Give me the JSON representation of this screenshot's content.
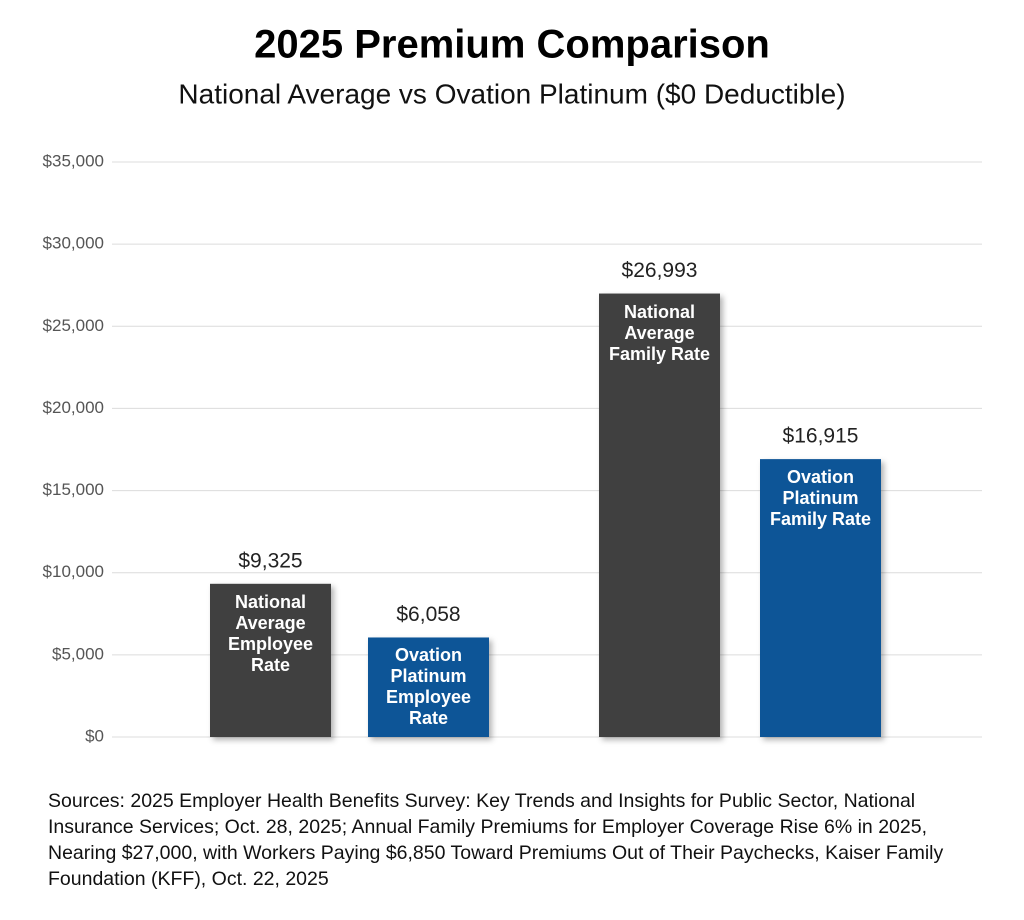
{
  "chart_data": {
    "type": "bar",
    "title": "2025 Premium Comparison",
    "subtitle": "National Average vs Ovation Platinum ($0 Deductible)",
    "categories": [
      "National Average Employee Rate",
      "Ovation Platinum Employee Rate",
      "National Average Family Rate",
      "Ovation Platinum Family Rate"
    ],
    "values": [
      9325,
      6058,
      26993,
      16915
    ],
    "value_labels": [
      "$9,325",
      "$6,058",
      "$26,993",
      "$16,915"
    ],
    "colors": [
      "#404040",
      "#0b5597",
      "#404040",
      "#0b5597"
    ],
    "ylim": [
      0,
      35000
    ],
    "yticks": [
      {
        "value": 0,
        "label": "$0"
      },
      {
        "value": 5000,
        "label": "$5,000"
      },
      {
        "value": 10000,
        "label": "$10,000"
      },
      {
        "value": 15000,
        "label": "$15,000"
      },
      {
        "value": 20000,
        "label": "$20,000"
      },
      {
        "value": 25000,
        "label": "$25,000"
      },
      {
        "value": 30000,
        "label": "$30,000"
      },
      {
        "value": 35000,
        "label": "$35,000"
      }
    ],
    "grid": true,
    "note": "Sources: 2025 Employer Health Benefits Survey: Key Trends and Insights for Public Sector, National Insurance Services; Oct. 28, 2025; Annual Family Premiums for Employer Coverage Rise 6% in 2025, Nearing $27,000, with Workers Paying $6,850 Toward Premiums Out of Their Paychecks, Kaiser Family Foundation (KFF), Oct. 22, 2025"
  }
}
